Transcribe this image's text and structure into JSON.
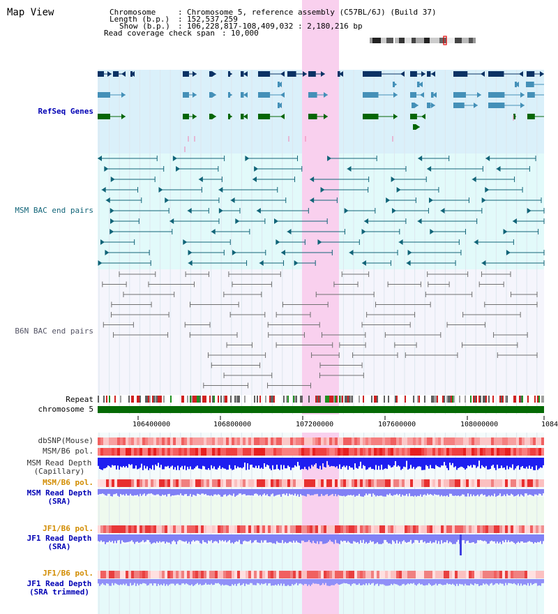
{
  "title": "Map View",
  "info": {
    "chromosome_label": "Chromosome",
    "chromosome_value": "Chromosome 5, reference assembly (C57BL/6J) (Build 37)",
    "length_label": "Length (b.p.)",
    "length_value": "152,537,259",
    "show_label": "Show (b.p.)",
    "show_value": "106,228,817-108,409,032 : 2,180,216 bp",
    "span_label": "Read coverage check span",
    "span_value": "10,000"
  },
  "tracks": {
    "refseq": "RefSeq Genes",
    "msm_bac": "MSM BAC end pairs",
    "b6n_bac": "B6N BAC end pairs",
    "repeat": "Repeat",
    "chrom": "chromosome 5",
    "dbsnp": "dbSNP(Mouse)",
    "msm_b6_pol_1": "MSM/B6 pol.",
    "msm_depth_cap_1": "MSM Read Depth",
    "msm_depth_cap_2": "(Capillary)",
    "msm_b6_pol_2": "MSM/B6 pol.",
    "msm_depth_sra_1": "MSM Read Depth",
    "msm_depth_sra_2": "(SRA)",
    "jf1_b6_pol_1": "JF1/B6 pol.",
    "jf1_depth_sra_1": "JF1 Read Depth",
    "jf1_depth_sra_2": "(SRA)",
    "jf1_b6_pol_2": "JF1/B6 pol.",
    "jf1_depth_trim_1": "JF1 Read Depth",
    "jf1_depth_trim_2": "(SRA trimmed)"
  },
  "axis": {
    "ticks": [
      "106400000",
      "106800000",
      "107200000",
      "107600000",
      "108000000",
      "1084"
    ]
  },
  "colors": {
    "highlight": "#f9d0ee",
    "refseq_bg": "#daf0fa",
    "msm_bac_bg": "#e2fafa",
    "b6n_bac_bg": "#f5f5fc",
    "gene_dark": "#0b3264",
    "gene_mid": "#4490b8",
    "gene_green": "#056605",
    "bac_line": "#116478",
    "b6n_line": "#707070",
    "msm_label": "#116478",
    "b6n_label": "#555566",
    "refseq_label": "#0000b4",
    "depth_blue": "#1e1ef0",
    "depth_light": "#8080f5",
    "jf1_pol_label": "#d28c00",
    "dark_label": "#0000b4",
    "chrom_green": "#056a05"
  }
}
